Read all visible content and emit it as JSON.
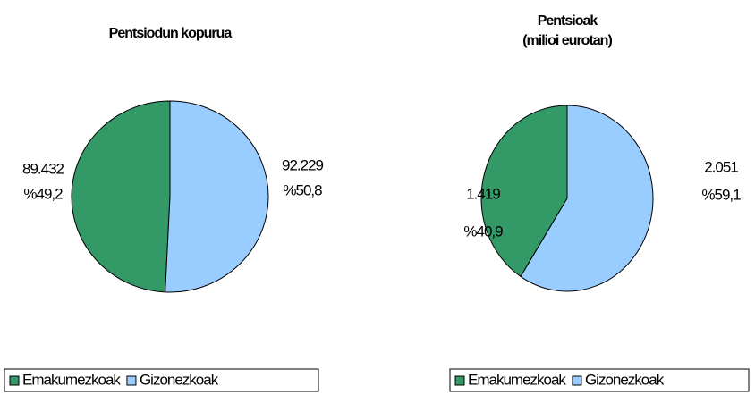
{
  "chart_data": [
    {
      "type": "pie",
      "title": "Pentsiodun kopurua",
      "categories": [
        "Emakumezkoak",
        "Gizonezkoak"
      ],
      "values": [
        89432,
        92229
      ],
      "value_labels": [
        "89.432",
        "92.229"
      ],
      "percent_labels": [
        "%49,2",
        "%50,8"
      ],
      "colors": [
        "#339966",
        "#99ccff"
      ]
    },
    {
      "type": "pie",
      "title": "Pentsioak",
      "subtitle": "(milioi eurotan)",
      "categories": [
        "Emakumezkoak",
        "Gizonezkoak"
      ],
      "values": [
        1419,
        2051
      ],
      "value_labels": [
        "1.419",
        "2.051"
      ],
      "percent_labels": [
        "%40,9",
        "%59,1"
      ],
      "colors": [
        "#339966",
        "#99ccff"
      ]
    }
  ]
}
